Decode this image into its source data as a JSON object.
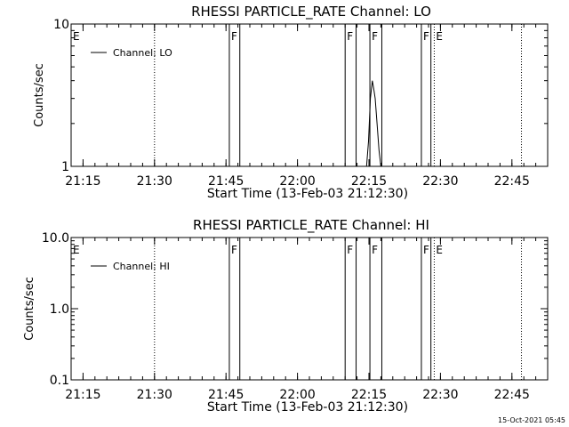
{
  "footer": {
    "timestamp": "15-Oct-2021 05:45"
  },
  "chart_data": [
    {
      "type": "line",
      "title": "RHESSI PARTICLE_RATE Channel: LO",
      "xlabel": "Start Time (13-Feb-03 21:12:30)",
      "ylabel": "Counts/sec",
      "yscale": "log",
      "ylim": [
        1,
        10
      ],
      "y_ticks": [
        {
          "v": 1,
          "label": "1"
        },
        {
          "v": 10,
          "label": "10"
        }
      ],
      "x_ticks": [
        {
          "t": 2.5,
          "label": "21:15"
        },
        {
          "t": 17.5,
          "label": "21:30"
        },
        {
          "t": 32.5,
          "label": "21:45"
        },
        {
          "t": 47.5,
          "label": "22:00"
        },
        {
          "t": 62.5,
          "label": "22:15"
        },
        {
          "t": 77.5,
          "label": "22:30"
        },
        {
          "t": 92.5,
          "label": "22:45"
        }
      ],
      "legend": {
        "label": "Channel: LO",
        "position": "top-left"
      },
      "series": [
        {
          "name": "Channel: LO",
          "x": [
            62.0,
            62.4,
            62.8,
            63.2,
            63.5,
            63.8,
            64.2,
            64.6,
            65.0
          ],
          "y": [
            1.0,
            1.5,
            3.0,
            4.0,
            3.5,
            3.0,
            2.0,
            1.3,
            1.0
          ]
        }
      ],
      "markers": [
        {
          "t": 0.0,
          "label": "E",
          "style": "dotted"
        },
        {
          "t": 17.5,
          "label": "",
          "style": "dotted"
        },
        {
          "t": 33.2,
          "label": "F",
          "style": "solid"
        },
        {
          "t": 35.4,
          "label": "",
          "style": "solid"
        },
        {
          "t": 57.5,
          "label": "F",
          "style": "solid"
        },
        {
          "t": 59.8,
          "label": "",
          "style": "solid"
        },
        {
          "t": 62.7,
          "label": "F",
          "style": "solid"
        },
        {
          "t": 65.2,
          "label": "",
          "style": "solid"
        },
        {
          "t": 73.5,
          "label": "F",
          "style": "solid"
        },
        {
          "t": 75.5,
          "label": "",
          "style": "solid"
        },
        {
          "t": 76.2,
          "label": "E",
          "style": "dotted"
        },
        {
          "t": 94.5,
          "label": "",
          "style": "dotted"
        }
      ]
    },
    {
      "type": "line",
      "title": "RHESSI PARTICLE_RATE Channel: HI",
      "xlabel": "Start Time (13-Feb-03 21:12:30)",
      "ylabel": "Counts/sec",
      "yscale": "log",
      "ylim": [
        0.1,
        10
      ],
      "y_ticks": [
        {
          "v": 0.1,
          "label": "0.1"
        },
        {
          "v": 1,
          "label": "1.0"
        },
        {
          "v": 10,
          "label": "10.0"
        }
      ],
      "x_ticks": [
        {
          "t": 2.5,
          "label": "21:15"
        },
        {
          "t": 17.5,
          "label": "21:30"
        },
        {
          "t": 32.5,
          "label": "21:45"
        },
        {
          "t": 47.5,
          "label": "22:00"
        },
        {
          "t": 62.5,
          "label": "22:15"
        },
        {
          "t": 77.5,
          "label": "22:30"
        },
        {
          "t": 92.5,
          "label": "22:45"
        }
      ],
      "legend": {
        "label": "Channel: HI",
        "position": "top-left"
      },
      "series": [
        {
          "name": "Channel: HI",
          "x": [],
          "y": []
        }
      ],
      "markers": [
        {
          "t": 0.0,
          "label": "E",
          "style": "dotted"
        },
        {
          "t": 17.5,
          "label": "",
          "style": "dotted"
        },
        {
          "t": 33.2,
          "label": "F",
          "style": "solid"
        },
        {
          "t": 35.4,
          "label": "",
          "style": "solid"
        },
        {
          "t": 57.5,
          "label": "F",
          "style": "solid"
        },
        {
          "t": 59.8,
          "label": "",
          "style": "solid"
        },
        {
          "t": 62.7,
          "label": "F",
          "style": "solid"
        },
        {
          "t": 65.2,
          "label": "",
          "style": "solid"
        },
        {
          "t": 73.5,
          "label": "F",
          "style": "solid"
        },
        {
          "t": 75.5,
          "label": "",
          "style": "solid"
        },
        {
          "t": 76.2,
          "label": "E",
          "style": "dotted"
        },
        {
          "t": 94.5,
          "label": "",
          "style": "dotted"
        }
      ]
    }
  ]
}
